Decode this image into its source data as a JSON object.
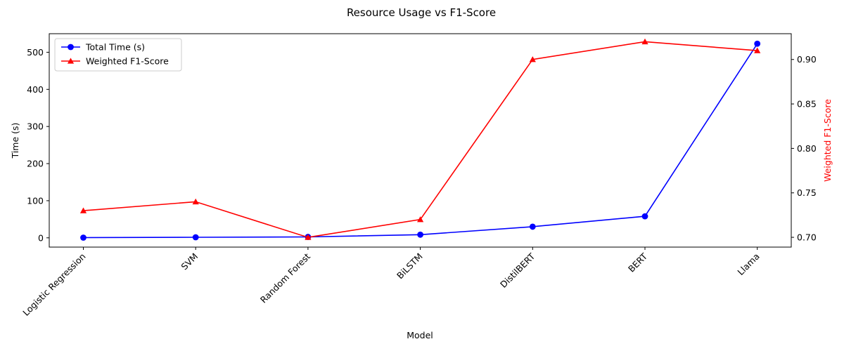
{
  "chart_data": {
    "type": "line",
    "title": "Resource Usage vs F1-Score",
    "xlabel": "Model",
    "ylabel_left": "Time (s)",
    "ylabel_right": "Weighted F1-Score",
    "categories": [
      "Logistic Regression",
      "SVM",
      "Random Forest",
      "BiLSTM",
      "DistilBERT",
      "BERT",
      "Llama"
    ],
    "ylim_left": [
      -25,
      550
    ],
    "ylim_right": [
      0.689,
      0.929
    ],
    "yticks_left": [
      0,
      100,
      200,
      300,
      400,
      500
    ],
    "yticks_right": [
      0.7,
      0.75,
      0.8,
      0.85,
      0.9
    ],
    "yticklabels_right": [
      "0.70",
      "0.75",
      "0.80",
      "0.85",
      "0.90"
    ],
    "grid": false,
    "legend_position": "top-left",
    "series": [
      {
        "name": "Total Time (s)",
        "axis": "left",
        "marker": "circle",
        "color": "#0000ff",
        "values": [
          0.5,
          1.5,
          2.5,
          8.5,
          30,
          58,
          523
        ]
      },
      {
        "name": "Weighted F1-Score",
        "axis": "right",
        "marker": "triangle",
        "color": "#ff0000",
        "values": [
          0.73,
          0.74,
          0.7,
          0.72,
          0.9,
          0.92,
          0.91
        ]
      }
    ]
  }
}
